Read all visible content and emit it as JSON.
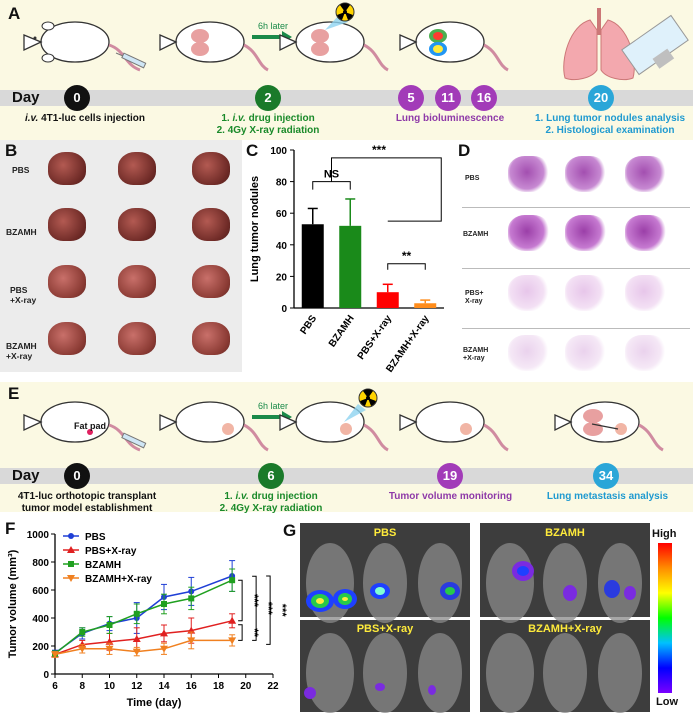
{
  "panels": {
    "a": "A",
    "b": "B",
    "c": "C",
    "d": "D",
    "e": "E",
    "f": "F",
    "g": "G"
  },
  "timeline_a": {
    "day_label": "Day",
    "arrow_label": "6h later",
    "points": [
      {
        "day": "0",
        "color": "#111111",
        "line1_italic": "i.v.",
        "line1": " 4T1-luc cells injection",
        "line2": "",
        "text_color": "#111111"
      },
      {
        "day": "2",
        "color": "#1a7a2a",
        "line1_italic": "i.v.",
        "line1_prefix": "1. ",
        "line1": " drug injection",
        "line2": "2. 4Gy X-ray radiation",
        "text_color": "#1a8a2a"
      },
      {
        "day": "5",
        "color": "#a23bb8",
        "line1": "",
        "line2": "",
        "text_color": "#8e3aa8"
      },
      {
        "day": "11",
        "color": "#a23bb8",
        "line1": "",
        "line2": "",
        "text_color": "#8e3aa8"
      },
      {
        "day": "16",
        "color": "#a23bb8",
        "line1": "Lung bioluminescence",
        "line2": "",
        "text_color": "#8e3aa8"
      },
      {
        "day": "20",
        "color": "#2aa6d8",
        "line1": "1. Lung tumor nodules analysis",
        "line2": "2. Histological examination",
        "text_color": "#1f9ad0"
      }
    ]
  },
  "timeline_e": {
    "day_label": "Day",
    "arrow_label": "6h later",
    "fat_pad_label": "Fat pad",
    "points": [
      {
        "day": "0",
        "color": "#111111",
        "line1": "4T1-luc orthotopic transplant",
        "line2": "tumor model establishment",
        "text_color": "#111111"
      },
      {
        "day": "6",
        "color": "#1a7a2a",
        "line1_prefix": "1. ",
        "line1_italic": "i.v.",
        "line1": " drug injection",
        "line2": "2. 4Gy X-ray radiation",
        "text_color": "#1a8a2a"
      },
      {
        "day": "19",
        "color": "#a23bb8",
        "line1": "Tumor volume monitoring",
        "line2": "",
        "text_color": "#8e3aa8"
      },
      {
        "day": "34",
        "color": "#2aa6d8",
        "line1": "Lung metastasis analysis",
        "line2": "",
        "text_color": "#1f9ad0"
      }
    ]
  },
  "panel_b": {
    "rows": [
      "PBS",
      "BZAMH",
      "PBS\n+X-ray",
      "BZAMH\n+X-ray"
    ]
  },
  "panel_d": {
    "rows": [
      "PBS",
      "BZAMH",
      "PBS+\nX-ray",
      "BZAMH\n+X-ray"
    ]
  },
  "panel_g": {
    "tiles": [
      "PBS",
      "BZAMH",
      "PBS+X-ray",
      "BZAMH+X-ray"
    ],
    "scale_high": "High",
    "scale_low": "Low"
  },
  "chart_data": [
    {
      "id": "C",
      "type": "bar",
      "ylabel": "Lung tumor nodules",
      "ylim": [
        0,
        100
      ],
      "yticks": [
        0,
        20,
        40,
        60,
        80,
        100
      ],
      "categories": [
        "PBS",
        "BZAMH",
        "PBS+X-ray",
        "BZAMH+X-ray"
      ],
      "values": [
        53,
        52,
        10,
        3
      ],
      "errors": [
        10,
        17,
        5,
        2
      ],
      "colors": [
        "#000000",
        "#1a8a1a",
        "#ff0000",
        "#ff8c1a"
      ],
      "annotations": [
        "***",
        "NS",
        "**"
      ]
    },
    {
      "id": "F",
      "type": "line",
      "xlabel": "Time (day)",
      "ylabel": "Tumor volume (mm³)",
      "xlim": [
        6,
        22
      ],
      "ylim": [
        0,
        1000
      ],
      "xticks": [
        6,
        8,
        10,
        12,
        14,
        16,
        18,
        20,
        22
      ],
      "yticks": [
        0,
        200,
        400,
        600,
        800,
        1000
      ],
      "x": [
        6,
        8,
        10,
        12,
        14,
        16,
        19
      ],
      "series": [
        {
          "name": "PBS",
          "color": "#1f3fd6",
          "marker": "circle",
          "values": [
            150,
            290,
            360,
            400,
            550,
            590,
            700
          ],
          "errors": [
            20,
            40,
            50,
            110,
            90,
            100,
            110
          ]
        },
        {
          "name": "PBS+X-ray",
          "color": "#e02020",
          "marker": "triangle",
          "values": [
            140,
            210,
            230,
            250,
            290,
            310,
            380
          ],
          "errors": [
            20,
            30,
            60,
            80,
            60,
            90,
            50
          ]
        },
        {
          "name": "BZAMH",
          "color": "#20a020",
          "marker": "square",
          "values": [
            145,
            300,
            350,
            430,
            500,
            540,
            670
          ],
          "errors": [
            20,
            30,
            60,
            70,
            70,
            80,
            80
          ]
        },
        {
          "name": "BZAMH+X-ray",
          "color": "#f08020",
          "marker": "triangle-down",
          "values": [
            140,
            180,
            180,
            160,
            180,
            240,
            240
          ],
          "errors": [
            20,
            30,
            40,
            30,
            40,
            60,
            40
          ]
        }
      ],
      "annotations": [
        "***",
        "***",
        "***",
        "**"
      ]
    }
  ]
}
